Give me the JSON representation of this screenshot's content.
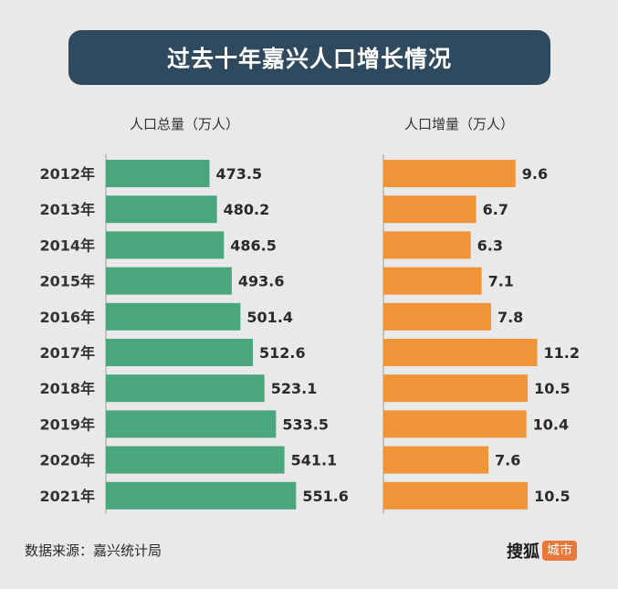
{
  "title": "过去十年嘉兴人口增长情况",
  "source": "数据来源：嘉兴统计局",
  "brand": {
    "name": "搜狐",
    "tag": "城市"
  },
  "colors": {
    "total": "#4aa67c",
    "increase": "#f0943a",
    "banner": "#2f4a5e",
    "background": "#e9e9e9"
  },
  "chart_data": [
    {
      "type": "bar",
      "orientation": "horizontal",
      "title": "人口总量（万人）",
      "categories": [
        "2012年",
        "2013年",
        "2014年",
        "2015年",
        "2016年",
        "2017年",
        "2018年",
        "2019年",
        "2020年",
        "2021年"
      ],
      "values": [
        473.5,
        480.2,
        486.5,
        493.6,
        501.4,
        512.6,
        523.1,
        533.5,
        541.1,
        551.6
      ],
      "value_labels": [
        "473.5",
        "480.2",
        "486.5",
        "493.6",
        "501.4",
        "512.6",
        "523.1",
        "533.5",
        "541.1",
        "551.6"
      ],
      "xlim": [
        0,
        700
      ],
      "grid": false
    },
    {
      "type": "bar",
      "orientation": "horizontal",
      "title": "人口增量（万人）",
      "categories": [
        "2012年",
        "2013年",
        "2014年",
        "2015年",
        "2016年",
        "2017年",
        "2018年",
        "2019年",
        "2020年",
        "2021年"
      ],
      "values": [
        9.6,
        6.7,
        6.3,
        7.1,
        7.8,
        11.2,
        10.5,
        10.4,
        7.6,
        10.5
      ],
      "value_labels": [
        "9.6",
        "6.7",
        "6.3",
        "7.1",
        "7.8",
        "11.2",
        "10.5",
        "10.4",
        "7.6",
        "10.5"
      ],
      "xlim": [
        0,
        11.5
      ],
      "grid": false
    }
  ]
}
